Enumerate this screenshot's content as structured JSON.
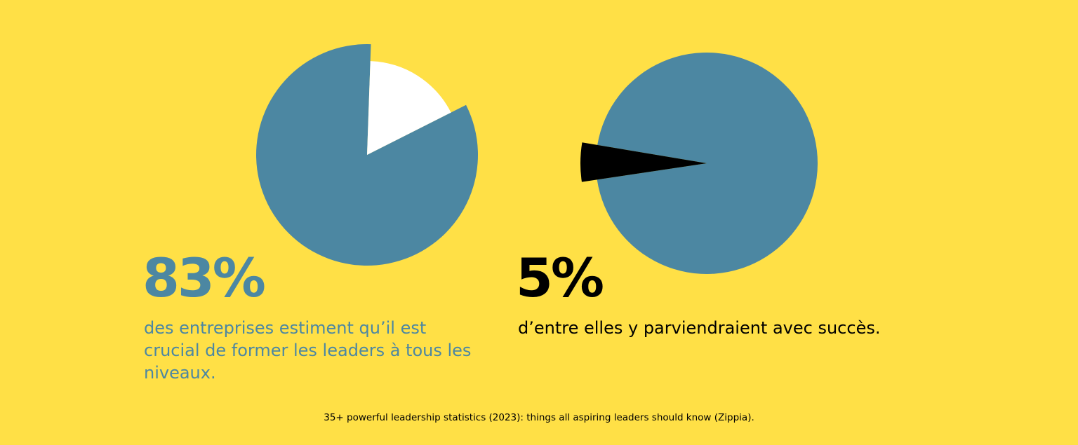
{
  "colors": {
    "background": "#FFE046",
    "primary": "#4C87A2",
    "white": "#FFFFFF",
    "black": "#000000"
  },
  "stats": [
    {
      "value": "83%",
      "text": "des entreprises estiment qu’il est crucial de former les leaders à tous les niveaux."
    },
    {
      "value": "5%",
      "text": "d’entre elles y parviendraient avec succès."
    }
  ],
  "source": "35+ powerful leadership statistics (2023): things all aspiring leaders should know (Zippia).",
  "chart_data": [
    {
      "type": "pie",
      "slices": [
        {
          "value": 83,
          "color": "#4C87A2"
        },
        {
          "value": 17,
          "color": "#FFFFFF",
          "exploded": true
        }
      ]
    },
    {
      "type": "pie",
      "slices": [
        {
          "value": 95,
          "color": "#4C87A2"
        },
        {
          "value": 5,
          "color": "#000000",
          "exploded": true
        }
      ]
    }
  ]
}
